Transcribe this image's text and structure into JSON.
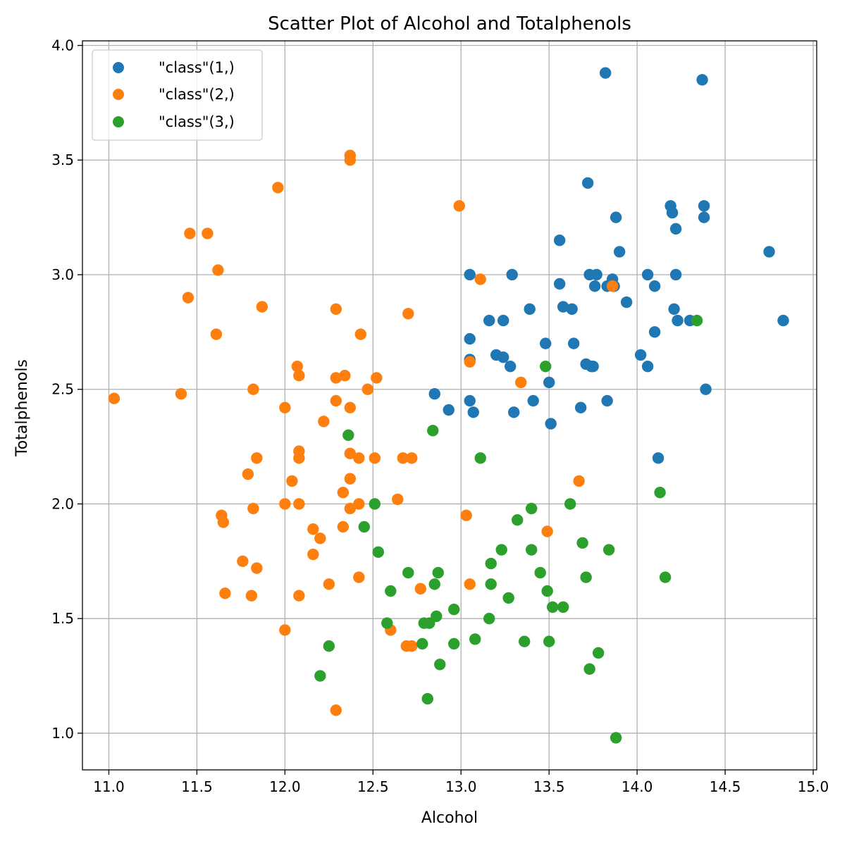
{
  "chart_data": {
    "type": "scatter",
    "title": "Scatter Plot of Alcohol and Totalphenols",
    "xlabel": "Alcohol",
    "ylabel": "Totalphenols",
    "xlim": [
      10.85,
      15.02
    ],
    "ylim": [
      0.84,
      4.02
    ],
    "xticks": [
      "11.0",
      "11.5",
      "12.0",
      "12.5",
      "13.0",
      "13.5",
      "14.0",
      "14.5",
      "15.0"
    ],
    "yticks": [
      "1.0",
      "1.5",
      "2.0",
      "2.5",
      "3.0",
      "3.5",
      "4.0"
    ],
    "grid": true,
    "legend_position": "top-left",
    "series": [
      {
        "name": "\"class\"(1,)",
        "color": "#1f77b4",
        "points": [
          [
            13.82,
            3.88
          ],
          [
            14.37,
            3.85
          ],
          [
            13.72,
            3.4
          ],
          [
            14.19,
            3.3
          ],
          [
            14.38,
            3.3
          ],
          [
            14.2,
            3.27
          ],
          [
            13.88,
            3.25
          ],
          [
            14.38,
            3.25
          ],
          [
            14.22,
            3.2
          ],
          [
            13.56,
            3.15
          ],
          [
            13.9,
            3.1
          ],
          [
            14.75,
            3.1
          ],
          [
            13.05,
            3.0
          ],
          [
            13.29,
            3.0
          ],
          [
            13.73,
            3.0
          ],
          [
            13.77,
            3.0
          ],
          [
            14.06,
            3.0
          ],
          [
            14.22,
            3.0
          ],
          [
            13.86,
            2.98
          ],
          [
            13.83,
            2.95
          ],
          [
            13.76,
            2.95
          ],
          [
            13.87,
            2.95
          ],
          [
            14.1,
            2.95
          ],
          [
            13.56,
            2.96
          ],
          [
            13.94,
            2.88
          ],
          [
            13.58,
            2.86
          ],
          [
            13.63,
            2.85
          ],
          [
            13.39,
            2.85
          ],
          [
            14.21,
            2.85
          ],
          [
            13.16,
            2.8
          ],
          [
            13.24,
            2.8
          ],
          [
            14.23,
            2.8
          ],
          [
            14.3,
            2.8
          ],
          [
            14.83,
            2.8
          ],
          [
            14.1,
            2.75
          ],
          [
            13.05,
            2.72
          ],
          [
            13.48,
            2.7
          ],
          [
            13.64,
            2.7
          ],
          [
            13.2,
            2.65
          ],
          [
            13.24,
            2.64
          ],
          [
            14.02,
            2.65
          ],
          [
            13.05,
            2.63
          ],
          [
            13.71,
            2.61
          ],
          [
            13.28,
            2.6
          ],
          [
            13.74,
            2.6
          ],
          [
            13.75,
            2.6
          ],
          [
            14.06,
            2.6
          ],
          [
            13.5,
            2.53
          ],
          [
            14.39,
            2.5
          ],
          [
            12.85,
            2.48
          ],
          [
            13.05,
            2.45
          ],
          [
            13.41,
            2.45
          ],
          [
            13.83,
            2.45
          ],
          [
            13.68,
            2.42
          ],
          [
            12.93,
            2.41
          ],
          [
            13.07,
            2.4
          ],
          [
            13.3,
            2.4
          ],
          [
            13.51,
            2.35
          ],
          [
            14.12,
            2.2
          ]
        ]
      },
      {
        "name": "\"class\"(2,)",
        "color": "#ff7f0e",
        "points": [
          [
            12.37,
            3.52
          ],
          [
            12.37,
            3.5
          ],
          [
            11.96,
            3.38
          ],
          [
            12.99,
            3.3
          ],
          [
            11.46,
            3.18
          ],
          [
            11.56,
            3.18
          ],
          [
            11.62,
            3.02
          ],
          [
            13.11,
            2.98
          ],
          [
            13.86,
            2.95
          ],
          [
            11.45,
            2.9
          ],
          [
            11.87,
            2.86
          ],
          [
            12.29,
            2.85
          ],
          [
            12.7,
            2.83
          ],
          [
            11.61,
            2.74
          ],
          [
            12.43,
            2.74
          ],
          [
            13.05,
            2.62
          ],
          [
            12.07,
            2.6
          ],
          [
            12.08,
            2.56
          ],
          [
            12.34,
            2.56
          ],
          [
            12.29,
            2.55
          ],
          [
            12.52,
            2.55
          ],
          [
            13.34,
            2.53
          ],
          [
            11.82,
            2.5
          ],
          [
            12.47,
            2.5
          ],
          [
            11.41,
            2.48
          ],
          [
            11.03,
            2.46
          ],
          [
            12.29,
            2.45
          ],
          [
            12.0,
            2.42
          ],
          [
            12.37,
            2.42
          ],
          [
            12.22,
            2.36
          ],
          [
            12.08,
            2.23
          ],
          [
            12.37,
            2.22
          ],
          [
            11.84,
            2.2
          ],
          [
            12.08,
            2.2
          ],
          [
            12.42,
            2.2
          ],
          [
            12.51,
            2.2
          ],
          [
            12.67,
            2.2
          ],
          [
            12.72,
            2.2
          ],
          [
            11.79,
            2.13
          ],
          [
            12.04,
            2.1
          ],
          [
            12.37,
            2.11
          ],
          [
            13.67,
            2.1
          ],
          [
            12.33,
            2.05
          ],
          [
            12.64,
            2.02
          ],
          [
            12.0,
            2.0
          ],
          [
            12.08,
            2.0
          ],
          [
            12.42,
            2.0
          ],
          [
            11.82,
            1.98
          ],
          [
            12.37,
            1.98
          ],
          [
            13.03,
            1.95
          ],
          [
            11.64,
            1.95
          ],
          [
            11.65,
            1.92
          ],
          [
            12.33,
            1.9
          ],
          [
            12.16,
            1.89
          ],
          [
            13.49,
            1.88
          ],
          [
            12.2,
            1.85
          ],
          [
            12.16,
            1.78
          ],
          [
            11.76,
            1.75
          ],
          [
            11.84,
            1.72
          ],
          [
            12.42,
            1.68
          ],
          [
            12.25,
            1.65
          ],
          [
            13.05,
            1.65
          ],
          [
            12.77,
            1.63
          ],
          [
            11.66,
            1.61
          ],
          [
            11.81,
            1.6
          ],
          [
            12.08,
            1.6
          ],
          [
            12.0,
            1.45
          ],
          [
            12.6,
            1.45
          ],
          [
            12.69,
            1.38
          ],
          [
            12.72,
            1.38
          ],
          [
            12.29,
            1.1
          ]
        ]
      },
      {
        "name": "\"class\"(3,)",
        "color": "#2ca02c",
        "points": [
          [
            14.34,
            2.8
          ],
          [
            13.48,
            2.6
          ],
          [
            12.84,
            2.32
          ],
          [
            12.36,
            2.3
          ],
          [
            13.11,
            2.2
          ],
          [
            14.13,
            2.05
          ],
          [
            12.51,
            2.0
          ],
          [
            13.62,
            2.0
          ],
          [
            13.4,
            1.98
          ],
          [
            13.32,
            1.93
          ],
          [
            12.45,
            1.9
          ],
          [
            13.69,
            1.83
          ],
          [
            13.23,
            1.8
          ],
          [
            13.4,
            1.8
          ],
          [
            13.84,
            1.8
          ],
          [
            12.53,
            1.79
          ],
          [
            13.17,
            1.74
          ],
          [
            12.7,
            1.7
          ],
          [
            12.87,
            1.7
          ],
          [
            13.45,
            1.7
          ],
          [
            13.71,
            1.68
          ],
          [
            14.16,
            1.68
          ],
          [
            12.85,
            1.65
          ],
          [
            13.17,
            1.65
          ],
          [
            12.6,
            1.62
          ],
          [
            13.49,
            1.62
          ],
          [
            13.27,
            1.59
          ],
          [
            13.52,
            1.55
          ],
          [
            13.58,
            1.55
          ],
          [
            12.96,
            1.54
          ],
          [
            12.86,
            1.51
          ],
          [
            13.16,
            1.5
          ],
          [
            12.58,
            1.48
          ],
          [
            12.79,
            1.48
          ],
          [
            12.82,
            1.48
          ],
          [
            13.08,
            1.41
          ],
          [
            13.36,
            1.4
          ],
          [
            13.5,
            1.4
          ],
          [
            12.78,
            1.39
          ],
          [
            12.96,
            1.39
          ],
          [
            12.25,
            1.38
          ],
          [
            13.78,
            1.35
          ],
          [
            12.88,
            1.3
          ],
          [
            13.73,
            1.28
          ],
          [
            12.2,
            1.25
          ],
          [
            12.81,
            1.15
          ],
          [
            13.88,
            0.98
          ]
        ]
      }
    ]
  }
}
